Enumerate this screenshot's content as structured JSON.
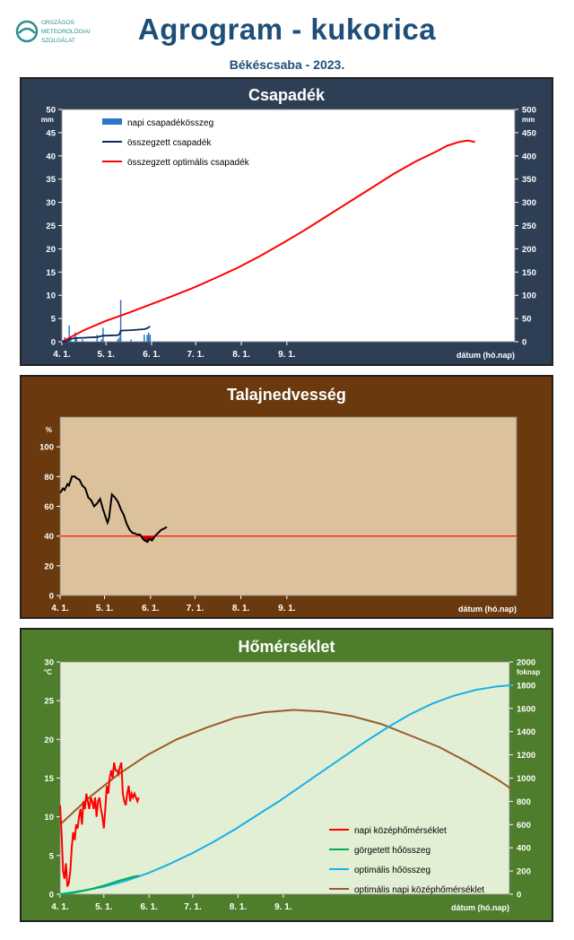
{
  "header": {
    "title": "Agrogram - kukorica",
    "subtitle": "Békéscsaba - 2023.",
    "logo_lines": [
      "ORSZÁGOS",
      "METEOROLÓGIAI",
      "SZOLGÁLAT"
    ],
    "logo_color": "#2a8f8f"
  },
  "chart_data": [
    {
      "type": "bar+line",
      "title": "Csapadék",
      "xlabel": "dátum (hó.nap)",
      "x_ticks": [
        "4. 1.",
        "5. 1.",
        "6. 1.",
        "7. 1.",
        "8. 1.",
        "9. 1."
      ],
      "y_left": {
        "unit": "mm",
        "lim": [
          0,
          50
        ],
        "ticks": [
          0,
          5,
          10,
          15,
          20,
          25,
          30,
          35,
          40,
          45,
          50
        ]
      },
      "y_right": {
        "unit": "mm",
        "lim": [
          0,
          500
        ],
        "ticks": [
          0,
          50,
          100,
          150,
          200,
          250,
          300,
          350,
          400,
          450,
          500
        ]
      },
      "legend_position": "top-left",
      "colors": {
        "bg": "#2e3f55",
        "plot_bg": "#ffffff",
        "daily": "#2e75c8",
        "cumulative": "#0b2a5c",
        "optimal": "#ff0000"
      },
      "series": [
        {
          "name": "napi csapadékösszeg",
          "kind": "bar",
          "axis": "left",
          "x": [
            2,
            4,
            5,
            6,
            9,
            10,
            14,
            24,
            27,
            28,
            38,
            39,
            40,
            47,
            56,
            58,
            59,
            60
          ],
          "values": [
            1,
            0.5,
            3.5,
            1,
            2,
            1,
            0.5,
            1.5,
            0.5,
            3,
            0.5,
            1,
            9,
            0.5,
            1.5,
            1.5,
            2,
            1.5
          ]
        },
        {
          "name": "összegzett csapadék",
          "kind": "line",
          "axis": "right",
          "x": [
            0,
            2,
            4,
            5,
            9,
            14,
            24,
            28,
            38,
            39,
            40,
            47,
            56,
            58,
            59,
            60
          ],
          "values": [
            0,
            1,
            1.5,
            5,
            8,
            8.5,
            10,
            13,
            14,
            15,
            24,
            25,
            27,
            29,
            31,
            33
          ]
        },
        {
          "name": "összegzett optimális  csapadék",
          "kind": "line",
          "axis": "right",
          "x": [
            0,
            15,
            30,
            45,
            60,
            75,
            90,
            105,
            120,
            135,
            150,
            165,
            180,
            195,
            210,
            225,
            240,
            255
          ],
          "values": [
            0,
            25,
            45,
            62,
            80,
            98,
            117,
            138,
            160,
            185,
            212,
            240,
            270,
            300,
            330,
            360,
            387,
            410
          ]
        },
        {
          "name": "",
          "kind": "line",
          "axis": "right",
          "x": [
            255,
            262,
            270,
            276,
            281
          ],
          "values": [
            410,
            422,
            430,
            433,
            430
          ]
        }
      ]
    },
    {
      "type": "line",
      "title": "Talajnedvesség",
      "xlabel": "dátum (hó.nap)",
      "x_ticks": [
        "4. 1.",
        "5. 1.",
        "6. 1.",
        "7. 1.",
        "8. 1.",
        "9. 1."
      ],
      "y_left": {
        "unit": "%",
        "lim": [
          0,
          120
        ],
        "ticks": [
          0,
          20,
          40,
          60,
          80,
          100
        ]
      },
      "colors": {
        "bg": "#6a3a0e",
        "plot_bg": "#dcc29c",
        "moisture": "#000000",
        "threshold": "#ff0000",
        "deficit": "#c00000"
      },
      "series": [
        {
          "name": "",
          "kind": "line",
          "x": [
            0,
            2,
            3,
            5,
            6,
            8,
            10,
            11,
            13,
            15,
            17,
            19,
            21,
            23,
            25,
            27,
            29,
            31,
            32,
            33,
            35,
            37,
            39,
            41,
            43,
            45,
            47,
            49,
            50,
            52,
            54,
            56,
            57,
            59,
            60,
            62,
            64,
            66,
            68,
            70,
            72
          ],
          "values": [
            69,
            72,
            71,
            75,
            74,
            80,
            80,
            79,
            78,
            74,
            72,
            66,
            64,
            60,
            62,
            65,
            58,
            52,
            49,
            52,
            68,
            66,
            63,
            58,
            54,
            48,
            44,
            42,
            42,
            41,
            41,
            38,
            37,
            36,
            38,
            37,
            40,
            42,
            44,
            45,
            46
          ]
        },
        {
          "name": "",
          "kind": "line",
          "x": [
            0,
            308
          ],
          "values": [
            40,
            40
          ]
        }
      ]
    },
    {
      "type": "line",
      "title": "Hőmérséklet",
      "xlabel": "dátum (hó.nap)",
      "x_ticks": [
        "4. 1.",
        "5. 1.",
        "6. 1.",
        "7. 1.",
        "8. 1.",
        "9. 1."
      ],
      "y_left": {
        "unit": "°C",
        "lim": [
          0,
          30
        ],
        "ticks": [
          0,
          5,
          10,
          15,
          20,
          25,
          30
        ]
      },
      "y_right": {
        "unit": "foknap",
        "lim": [
          0,
          2000
        ],
        "ticks": [
          0,
          200,
          400,
          600,
          800,
          1000,
          1200,
          1400,
          1600,
          1800,
          2000
        ]
      },
      "legend_position": "bottom-right",
      "colors": {
        "bg": "#4e7d2b",
        "plot_bg": "#e2efd4",
        "daily_mean": "#ff0000",
        "rolling": "#00b050",
        "optimal_sum": "#1ab0e8",
        "optimal_daily": "#9c5a2c"
      },
      "series": [
        {
          "name": "napi középhőmérséklet",
          "kind": "line",
          "axis": "left",
          "x": [
            0,
            1,
            2,
            3,
            4,
            5,
            6,
            7,
            8,
            9,
            10,
            11,
            12,
            13,
            14,
            15,
            16,
            17,
            18,
            19,
            20,
            21,
            22,
            23,
            24,
            25,
            26,
            27,
            28,
            29,
            30,
            31,
            32,
            33,
            34,
            35,
            36,
            37,
            38,
            39,
            40,
            41,
            42,
            43,
            44,
            45,
            46,
            47,
            48,
            49,
            50,
            51,
            52,
            53,
            54
          ],
          "values": [
            11.5,
            8,
            3,
            2,
            4,
            1,
            1.5,
            3,
            6,
            8,
            7,
            9,
            8.5,
            10,
            11,
            9,
            12,
            11,
            13,
            12,
            11,
            12.5,
            12,
            11,
            12.5,
            10,
            12,
            12.5,
            11,
            10,
            8.5,
            11,
            14,
            13,
            15,
            16,
            15,
            17,
            16,
            16,
            15.5,
            16.5,
            17,
            13,
            12,
            11.5,
            13,
            14,
            12,
            13,
            12.5,
            13,
            12.5,
            12,
            12.5
          ]
        },
        {
          "name": "görgetett hőösszeg",
          "kind": "line",
          "axis": "right",
          "x": [
            0,
            10,
            20,
            30,
            40,
            50,
            54
          ],
          "values": [
            0,
            15,
            40,
            75,
            115,
            150,
            160
          ]
        },
        {
          "name": "optimális hőösszeg",
          "kind": "line",
          "axis": "right",
          "x": [
            0,
            15,
            30,
            45,
            60,
            75,
            90,
            105,
            120,
            135,
            150,
            165,
            180,
            195,
            210,
            225,
            240,
            255,
            270,
            285,
            300,
            310
          ],
          "values": [
            0,
            30,
            65,
            115,
            180,
            260,
            350,
            450,
            560,
            680,
            800,
            930,
            1060,
            1190,
            1320,
            1440,
            1550,
            1640,
            1710,
            1760,
            1790,
            1800
          ]
        },
        {
          "name": "optimális napi középhőmérséklet",
          "kind": "line",
          "axis": "left",
          "x": [
            0,
            20,
            40,
            60,
            80,
            100,
            120,
            140,
            160,
            180,
            200,
            220,
            240,
            260,
            280,
            300,
            310
          ],
          "values": [
            9,
            12.5,
            15.5,
            18,
            20,
            21.5,
            22.8,
            23.5,
            23.8,
            23.6,
            23,
            22,
            20.5,
            19,
            17,
            14.8,
            13.5
          ]
        }
      ]
    }
  ]
}
